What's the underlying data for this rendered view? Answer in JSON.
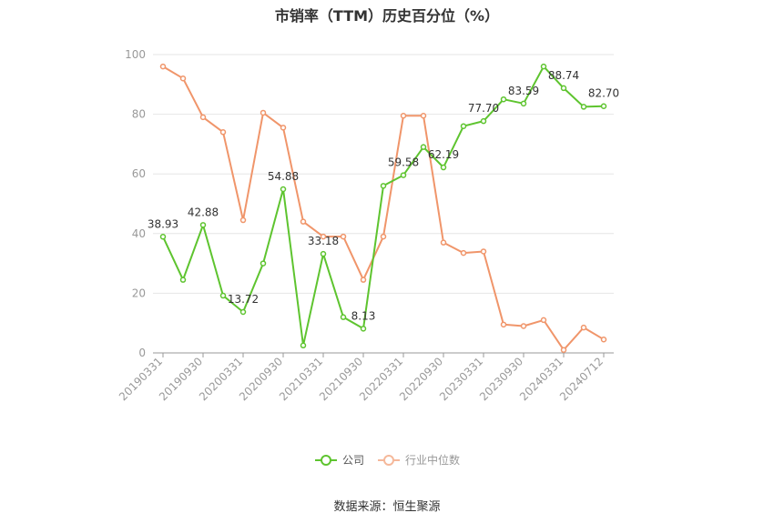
{
  "chart_data": {
    "type": "line",
    "title": "市销率（TTM）历史百分位（%）",
    "xlabel": "",
    "ylabel": "",
    "ylim": [
      0,
      100
    ],
    "yticks": [
      0,
      20,
      40,
      60,
      80,
      100
    ],
    "grid": true,
    "legend_position": "bottom",
    "x": [
      "20190331",
      "20190630",
      "20190930",
      "20191231",
      "20200331",
      "20200630",
      "20200930",
      "20201231",
      "20210331",
      "20210630",
      "20210930",
      "20211231",
      "20220331",
      "20220630",
      "20220930",
      "20221231",
      "20230331",
      "20230630",
      "20230930",
      "20231231",
      "20240331",
      "20240630",
      "20240712"
    ],
    "x_tick_labels": [
      "20190331",
      "20190930",
      "20200331",
      "20200930",
      "20210331",
      "20210930",
      "20220331",
      "20220930",
      "20230331",
      "20230930",
      "20240331",
      "20240712"
    ],
    "x_tick_indices": [
      0,
      2,
      4,
      6,
      8,
      10,
      12,
      14,
      16,
      18,
      20,
      22
    ],
    "series": [
      {
        "name": "公司",
        "color": "#5ec42f",
        "values": [
          38.93,
          24.5,
          42.88,
          19.2,
          13.72,
          30.0,
          54.88,
          2.5,
          33.18,
          12.0,
          8.13,
          56.0,
          59.58,
          69.0,
          62.19,
          76.0,
          77.7,
          85.0,
          83.59,
          96.0,
          88.74,
          82.5,
          82.7
        ],
        "data_labels": [
          {
            "index": 0,
            "text": "38.93"
          },
          {
            "index": 2,
            "text": "42.88"
          },
          {
            "index": 4,
            "text": "13.72"
          },
          {
            "index": 6,
            "text": "54.88"
          },
          {
            "index": 8,
            "text": "33.18"
          },
          {
            "index": 10,
            "text": "8.13"
          },
          {
            "index": 12,
            "text": "59.58"
          },
          {
            "index": 14,
            "text": "62.19"
          },
          {
            "index": 16,
            "text": "77.70"
          },
          {
            "index": 18,
            "text": "83.59"
          },
          {
            "index": 20,
            "text": "88.74"
          },
          {
            "index": 22,
            "text": "82.70"
          }
        ]
      },
      {
        "name": "行业中位数",
        "color": "#f0956a",
        "values": [
          96.0,
          92.0,
          79.0,
          74.0,
          44.5,
          80.5,
          75.5,
          44.0,
          39.0,
          39.0,
          24.5,
          39.0,
          79.5,
          79.5,
          37.0,
          33.5,
          34.0,
          9.5,
          9.0,
          11.0,
          1.0,
          8.5,
          4.5
        ]
      }
    ]
  },
  "source": "数据来源：恒生聚源"
}
